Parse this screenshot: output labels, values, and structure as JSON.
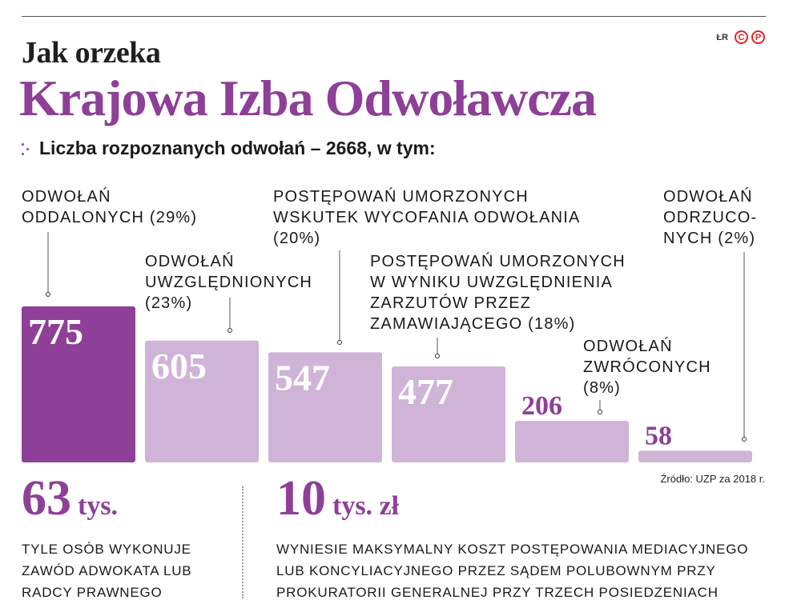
{
  "header": {
    "pre_title": "Jak orzeka",
    "title": "Krajowa Izba Odwoławcza",
    "brand_text": "ŁR",
    "brand_marks": [
      "C",
      "P"
    ],
    "subtitle": "Liczba rozpoznanych odwołań – 2668, w tym:"
  },
  "colors": {
    "accent": "#8e3f97",
    "bar_light": "#d0b4d8",
    "brand_red": "#e3262b"
  },
  "chart_data": {
    "type": "bar",
    "title": "Liczba rozpoznanych odwołań – 2668, w tym:",
    "categories": [
      "ODWOŁAŃ ODDALONYCH (29%)",
      "ODWOŁAŃ UWZGLĘDNIONYCH (23%)",
      "POSTĘPOWAŃ UMORZONYCH WSKUTEK WYCOFANIA ODWOŁANIA (20%)",
      "POSTĘPOWAŃ UMORZONYCH W WYNIKU UWZGLĘDNIENIA ZARZUTÓW PRZEZ ZAMAWIAJĄCEGO (18%)",
      "ODWOŁAŃ ZWRÓCONYCH (8%)",
      "ODWOŁAŃ ODRZUCONYCH (2%)"
    ],
    "values": [
      775,
      605,
      547,
      477,
      206,
      58
    ],
    "labels": [
      "ODWOŁAŃ\nODDALONYCH (29%)",
      "ODWOŁAŃ\nUWZGLĘDNIONYCH\n(23%)",
      "POSTĘPOWAŃ UMORZONYCH\nWSKUTEK WYCOFANIA ODWOŁANIA\n(20%)",
      "POSTĘPOWAŃ UMORZONYCH\nW WYNIKU UWZGLĘDNIENIA\nZARZUTÓW PRZEZ\nZAMAWIAJĄCEGO (18%)",
      "ODWOŁAŃ\nZWRÓCONYCH\n(8%)",
      "ODWOŁAŃ\nODRZUCO-\nNYCH (2%)"
    ],
    "highlight_index": 0,
    "grid": false,
    "source": "Źródło: UZP za 2018 r."
  },
  "facts": [
    {
      "number": "63",
      "unit": "tys.",
      "description": "TYLE OSÓB WYKONUJE\nZAWÓD ADWOKATA LUB\nRADCY PRAWNEGO"
    },
    {
      "number": "10",
      "unit": "tys. zł",
      "description": "WYNIESIE MAKSYMALNY KOSZT POSTĘPOWANIA MEDIACYJNEGO\nLUB KONCYLIACYJNEGO PRZEZ SĄDEM POLUBOWNYM PRZY\nPROKURATORII GENERALNEJ PRZY TRZECH POSIEDZENIACH"
    }
  ]
}
